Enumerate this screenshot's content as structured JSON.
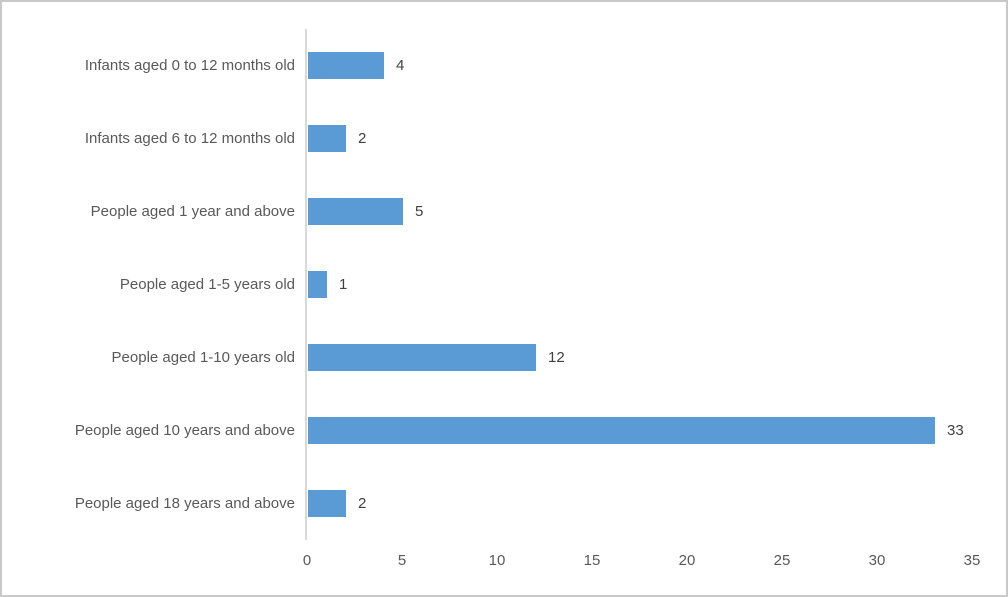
{
  "chart_data": {
    "type": "bar",
    "orientation": "horizontal",
    "title": "",
    "xlabel": "",
    "ylabel": "",
    "categories": [
      "Infants aged 0 to 12 months old",
      "Infants aged 6 to 12 months old",
      "People aged 1 year and above",
      "People aged 1-5 years old",
      "People aged 1-10 years old",
      "People aged 10 years and above",
      "People aged 18 years and above"
    ],
    "values": [
      4,
      2,
      5,
      1,
      12,
      33,
      2
    ],
    "data_labels": [
      "4",
      "2",
      "5",
      "1",
      "12",
      "33",
      "2"
    ],
    "x_ticks": [
      "0",
      "5",
      "10",
      "15",
      "20",
      "25",
      "30",
      "35"
    ],
    "xlim": [
      0,
      35
    ],
    "grid": false,
    "legend": false,
    "colors": {
      "bar": "#5B9BD5",
      "axis_line": "#D9D9D9",
      "category_text": "#595959",
      "value_text": "#404040",
      "frame_border": "#C9C9C9",
      "background": "#FFFFFF"
    }
  }
}
